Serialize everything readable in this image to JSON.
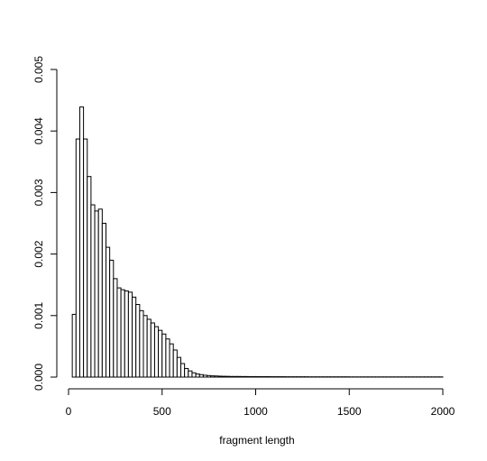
{
  "chart_data": {
    "type": "bar",
    "title": "",
    "xlabel": "fragment length",
    "ylabel": "",
    "xlim": [
      0,
      2000
    ],
    "ylim": [
      0,
      0.005
    ],
    "x_ticks": [
      "0",
      "500",
      "1000",
      "1500",
      "2000"
    ],
    "y_ticks": [
      "0.000",
      "0.001",
      "0.002",
      "0.003",
      "0.004",
      "0.005"
    ],
    "grid": false,
    "bin_width": 20,
    "bin_start": 20,
    "values": [
      0.00102,
      0.00387,
      0.00439,
      0.00387,
      0.00326,
      0.0028,
      0.0027,
      0.00273,
      0.0025,
      0.00211,
      0.0019,
      0.0016,
      0.00145,
      0.00142,
      0.0014,
      0.00138,
      0.0013,
      0.00118,
      0.00108,
      0.001,
      0.00094,
      0.00088,
      0.00082,
      0.00076,
      0.0007,
      0.00062,
      0.00054,
      0.00044,
      0.00032,
      0.00022,
      0.00014,
      0.0001,
      7e-05,
      5e-05,
      4e-05,
      3e-05,
      2.5e-05,
      2e-05,
      1.8e-05,
      1.5e-05,
      1.3e-05,
      1.2e-05,
      1e-05,
      1e-05,
      1e-05,
      9e-06,
      9e-06,
      8e-06,
      8e-06,
      8e-06,
      7e-06,
      7e-06,
      7e-06,
      6e-06,
      6e-06,
      6e-06,
      6e-06,
      5e-06,
      5e-06,
      5e-06,
      5e-06,
      5e-06,
      5e-06,
      4e-06,
      4e-06,
      4e-06,
      4e-06,
      4e-06,
      4e-06,
      4e-06,
      4e-06,
      4e-06,
      4e-06,
      4e-06,
      3e-06,
      3e-06,
      3e-06,
      3e-06,
      3e-06,
      3e-06,
      3e-06,
      3e-06,
      3e-06,
      3e-06,
      3e-06,
      3e-06,
      3e-06,
      3e-06,
      3e-06,
      3e-06,
      3e-06,
      3e-06,
      3e-06,
      3e-06,
      3e-06,
      3e-06,
      3e-06,
      3e-06,
      3e-06
    ]
  }
}
